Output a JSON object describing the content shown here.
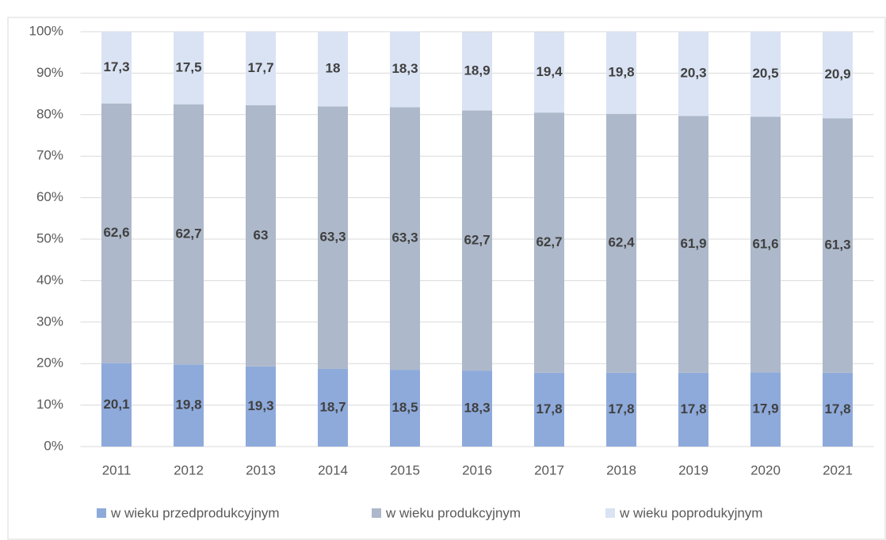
{
  "chart_data": {
    "type": "bar",
    "stacked": true,
    "categories": [
      "2011",
      "2012",
      "2013",
      "2014",
      "2015",
      "2016",
      "2017",
      "2018",
      "2019",
      "2020",
      "2021"
    ],
    "series": [
      {
        "name": "w wieku przedprodukcyjnym",
        "color": "#8eaadb",
        "values": [
          20.1,
          19.8,
          19.3,
          18.7,
          18.5,
          18.3,
          17.8,
          17.8,
          17.8,
          17.9,
          17.8
        ],
        "value_labels": [
          "20,1",
          "19,8",
          "19,3",
          "18,7",
          "18,5",
          "18,3",
          "17,8",
          "17,8",
          "17,8",
          "17,9",
          "17,8"
        ]
      },
      {
        "name": "w wieku produkcyjnym",
        "color": "#adb9ca",
        "values": [
          62.6,
          62.7,
          63,
          63.3,
          63.3,
          62.7,
          62.7,
          62.4,
          61.9,
          61.6,
          61.3
        ],
        "value_labels": [
          "62,6",
          "62,7",
          "63",
          "63,3",
          "63,3",
          "62,7",
          "62,7",
          "62,4",
          "61,9",
          "61,6",
          "61,3"
        ]
      },
      {
        "name": "w wieku poprodukyjnym",
        "color": "#dae3f3",
        "values": [
          17.3,
          17.5,
          17.7,
          18,
          18.3,
          18.9,
          19.4,
          19.8,
          20.3,
          20.5,
          20.9
        ],
        "value_labels": [
          "17,3",
          "17,5",
          "17,7",
          "18",
          "18,3",
          "18,9",
          "19,4",
          "19,8",
          "20,3",
          "20,5",
          "20,9"
        ]
      }
    ],
    "ylim": [
      0,
      100
    ],
    "yticks": [
      {
        "value": 0,
        "label": "0%"
      },
      {
        "value": 10,
        "label": "10%"
      },
      {
        "value": 20,
        "label": "20%"
      },
      {
        "value": 30,
        "label": "30%"
      },
      {
        "value": 40,
        "label": "40%"
      },
      {
        "value": 50,
        "label": "50%"
      },
      {
        "value": 60,
        "label": "60%"
      },
      {
        "value": 70,
        "label": "70%"
      },
      {
        "value": 80,
        "label": "80%"
      },
      {
        "value": 90,
        "label": "90%"
      },
      {
        "value": 100,
        "label": "100%"
      }
    ],
    "grid": true,
    "legend": "bottom"
  }
}
